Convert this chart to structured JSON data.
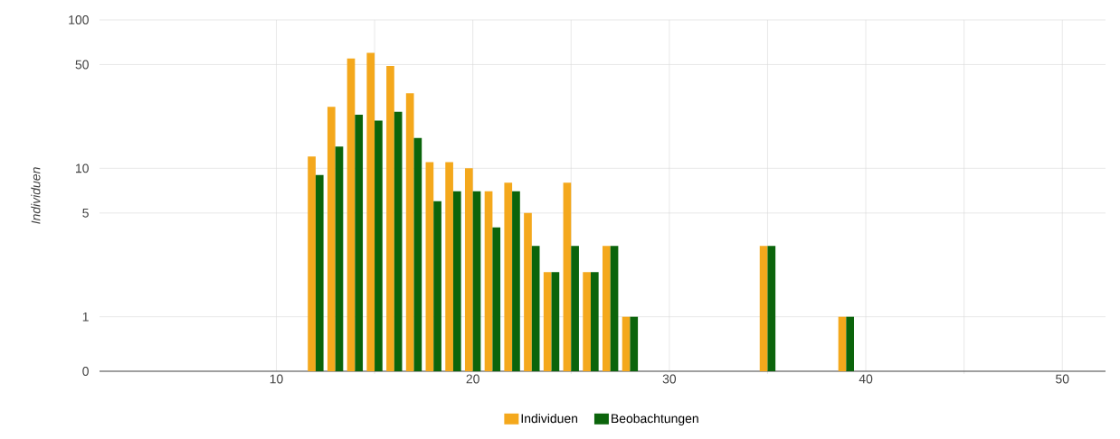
{
  "chart_data": {
    "type": "bar",
    "ylabel": "Individuen",
    "x": [
      12,
      13,
      14,
      15,
      16,
      17,
      18,
      19,
      20,
      21,
      22,
      23,
      24,
      25,
      26,
      27,
      28,
      35,
      39
    ],
    "series": [
      {
        "name": "Individuen",
        "color": "#f4a81c",
        "values": [
          12,
          26,
          55,
          60,
          49,
          32,
          11,
          11,
          10,
          7,
          8,
          5,
          2,
          8,
          2,
          3,
          1,
          3,
          1
        ]
      },
      {
        "name": "Beobachtungen",
        "color": "#0b640b",
        "values": [
          9,
          14,
          23,
          21,
          24,
          16,
          6,
          7,
          7,
          4,
          7,
          3,
          2,
          3,
          2,
          3,
          1,
          3,
          1
        ]
      }
    ],
    "xlim": [
      1,
      52.2
    ],
    "xticks": [
      10,
      20,
      30,
      40,
      50
    ],
    "ylim": [
      0,
      100
    ],
    "yticks": [
      0,
      1,
      5,
      10,
      50,
      100
    ],
    "log": true,
    "grid": true,
    "legend": "bottom"
  }
}
